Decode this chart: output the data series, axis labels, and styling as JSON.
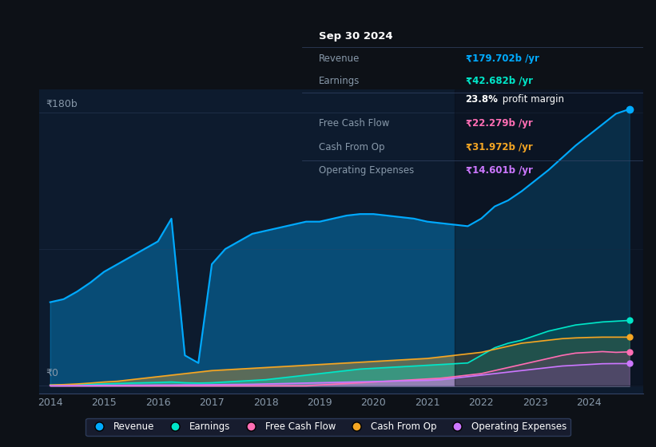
{
  "bg_color": "#0d1117",
  "plot_bg_color": "#0d1b2e",
  "title": "Sep 30 2024",
  "ylabel_top": "₹180b",
  "ylabel_bottom": "₹0",
  "x_ticks": [
    2014,
    2015,
    2016,
    2017,
    2018,
    2019,
    2020,
    2021,
    2022,
    2023,
    2024
  ],
  "legend_items": [
    "Revenue",
    "Earnings",
    "Free Cash Flow",
    "Cash From Op",
    "Operating Expenses"
  ],
  "legend_colors": [
    "#00aaff",
    "#00e6c8",
    "#ff6eb4",
    "#f5a623",
    "#cc77ff"
  ],
  "info_box": {
    "date": "Sep 30 2024",
    "rows": [
      {
        "label": "Revenue",
        "value": "₹179.702b /yr",
        "color": "#00aaff"
      },
      {
        "label": "Earnings",
        "value": "₹42.682b /yr",
        "color": "#00e6c8"
      },
      {
        "label": "",
        "value": "23.8% profit margin",
        "color": "#ffffff"
      },
      {
        "label": "Free Cash Flow",
        "value": "₹22.279b /yr",
        "color": "#ff6eb4"
      },
      {
        "label": "Cash From Op",
        "value": "₹31.972b /yr",
        "color": "#f5a623"
      },
      {
        "label": "Operating Expenses",
        "value": "₹14.601b /yr",
        "color": "#cc77ff"
      }
    ]
  },
  "years": [
    2014,
    2014.25,
    2014.5,
    2014.75,
    2015,
    2015.25,
    2015.5,
    2015.75,
    2016,
    2016.25,
    2016.5,
    2016.75,
    2017,
    2017.25,
    2017.5,
    2017.75,
    2018,
    2018.25,
    2018.5,
    2018.75,
    2019,
    2019.25,
    2019.5,
    2019.75,
    2020,
    2020.25,
    2020.5,
    2020.75,
    2021,
    2021.25,
    2021.5,
    2021.75,
    2022,
    2022.25,
    2022.5,
    2022.75,
    2023,
    2023.25,
    2023.5,
    2023.75,
    2024,
    2024.25,
    2024.5,
    2024.75
  ],
  "revenue": [
    55,
    57,
    62,
    68,
    75,
    80,
    85,
    90,
    95,
    110,
    20,
    15,
    80,
    90,
    95,
    100,
    102,
    104,
    106,
    108,
    108,
    110,
    112,
    113,
    113,
    112,
    111,
    110,
    108,
    107,
    106,
    105,
    110,
    118,
    122,
    128,
    135,
    142,
    150,
    158,
    165,
    172,
    179,
    182
  ],
  "earnings": [
    0.5,
    0.6,
    0.8,
    1.0,
    1.2,
    1.5,
    1.8,
    2.0,
    2.2,
    2.5,
    2.0,
    1.8,
    2.0,
    2.5,
    3.0,
    3.5,
    4.0,
    5.0,
    6.0,
    7.0,
    8.0,
    9.0,
    10.0,
    11.0,
    11.5,
    12.0,
    12.5,
    13.0,
    13.5,
    14.0,
    14.5,
    15.0,
    20.0,
    25.0,
    28.0,
    30.0,
    33.0,
    36.0,
    38.0,
    40.0,
    41.0,
    42.0,
    42.5,
    43.0
  ],
  "free_cash_flow": [
    0.0,
    0.0,
    0.0,
    0.0,
    0.0,
    0.0,
    0.0,
    0.0,
    0.0,
    0.0,
    0.0,
    0.0,
    0.0,
    0.0,
    0.0,
    0.0,
    0.0,
    0.0,
    0.0,
    0.0,
    0.5,
    1.0,
    1.5,
    2.0,
    2.5,
    3.0,
    3.5,
    4.0,
    4.5,
    5.0,
    6.0,
    7.0,
    8.0,
    10.0,
    12.0,
    14.0,
    16.0,
    18.0,
    20.0,
    21.5,
    22.0,
    22.5,
    22.0,
    22.3
  ],
  "cash_from_op": [
    0.5,
    0.8,
    1.2,
    1.8,
    2.5,
    3.0,
    4.0,
    5.0,
    6.0,
    7.0,
    8.0,
    9.0,
    10.0,
    10.5,
    11.0,
    11.5,
    12.0,
    12.5,
    13.0,
    13.5,
    14.0,
    14.5,
    15.0,
    15.5,
    16.0,
    16.5,
    17.0,
    17.5,
    18.0,
    19.0,
    20.0,
    21.0,
    22.0,
    24.0,
    26.0,
    28.0,
    29.0,
    30.0,
    31.0,
    31.5,
    31.8,
    32.0,
    32.0,
    32.0
  ],
  "operating_expenses": [
    0.1,
    0.1,
    0.2,
    0.2,
    0.3,
    0.3,
    0.4,
    0.4,
    0.5,
    0.5,
    0.6,
    0.6,
    0.7,
    0.8,
    0.9,
    1.0,
    1.2,
    1.4,
    1.6,
    1.8,
    2.0,
    2.2,
    2.4,
    2.6,
    2.8,
    3.0,
    3.2,
    3.4,
    3.6,
    4.0,
    5.0,
    6.0,
    7.0,
    8.0,
    9.0,
    10.0,
    11.0,
    12.0,
    13.0,
    13.5,
    14.0,
    14.5,
    14.6,
    14.6
  ]
}
